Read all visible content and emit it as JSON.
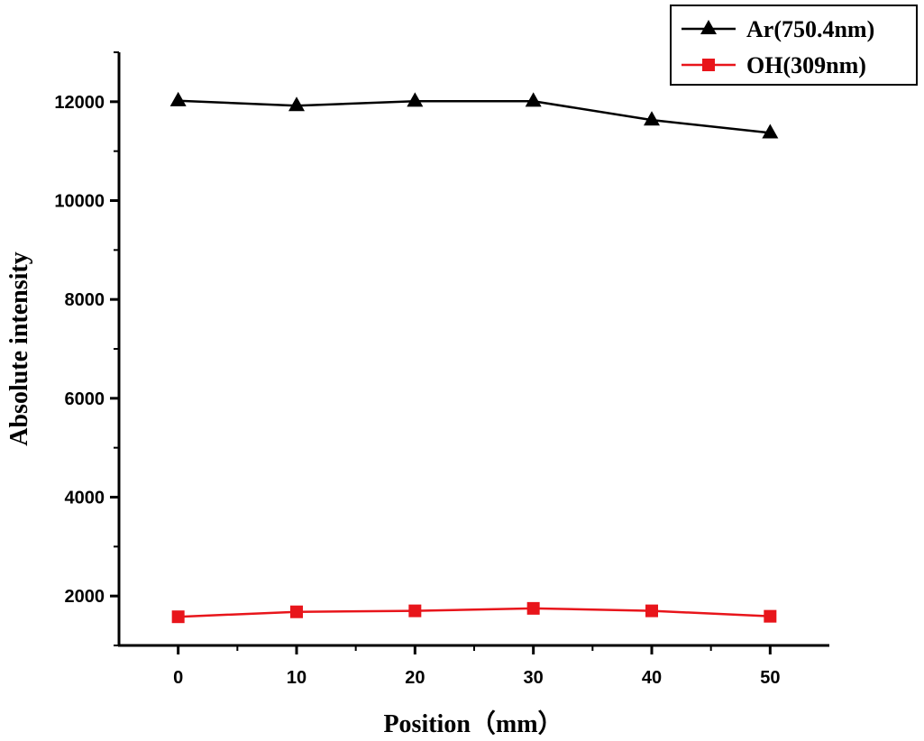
{
  "chart_data": {
    "type": "line",
    "xlabel": "Position（mm）",
    "ylabel": "Absolute intensity",
    "xlim": [
      -5,
      55
    ],
    "ylim": [
      1000,
      13000
    ],
    "x_ticks": [
      0,
      10,
      20,
      30,
      40,
      50
    ],
    "y_ticks": [
      2000,
      4000,
      6000,
      8000,
      10000,
      12000
    ],
    "x": [
      0,
      10,
      20,
      30,
      40,
      50
    ],
    "grid": false,
    "legend_position": "top-right",
    "series": [
      {
        "name": "Ar(750.4nm)",
        "color": "#000000",
        "marker": "triangle",
        "values": [
          12020,
          11920,
          12010,
          12010,
          11630,
          11370
        ]
      },
      {
        "name": "OH(309nm)",
        "color": "#e8151b",
        "marker": "square",
        "values": [
          1580,
          1680,
          1700,
          1750,
          1700,
          1590
        ]
      }
    ]
  }
}
